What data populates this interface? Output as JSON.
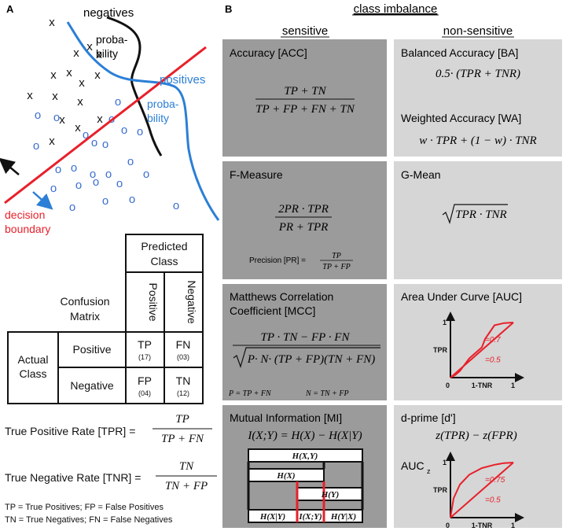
{
  "colors": {
    "boundary": "#e8202a",
    "positive_curve": "#2b7fd6",
    "negative_curve": "#111111",
    "positive_marker": "#3b6fd1",
    "negative_marker": "#111111",
    "sensitive_box": "#9b9b9b",
    "nonsensitive_box": "#d6d6d6",
    "auc_curve": "#e8202a"
  },
  "panel_a": {
    "letter": "A",
    "label_negatives": "negatives",
    "label_neg_prob_1": "proba-",
    "label_neg_prob_1b": "bility",
    "label_neg_prob_2": "proba-",
    "label_neg_prob_2b": "bility",
    "label_positives": "positives",
    "label_decision": "decision",
    "label_boundary": "boundary",
    "neg_marker": "x",
    "pos_marker": "o",
    "confusion": {
      "predicted_1": "Predicted",
      "predicted_2": "Class",
      "col_positive": "Positive",
      "col_negative": "Negative",
      "matrix_1": "Confusion",
      "matrix_2": "Matrix",
      "actual_1": "Actual",
      "actual_2": "Class",
      "row_positive": "Positive",
      "row_negative": "Negative",
      "tp": "TP",
      "tp_n": "(17)",
      "fn": "FN",
      "fn_n": "(03)",
      "fp": "FP",
      "fp_n": "(04)",
      "tn": "TN",
      "tn_n": "(12)"
    },
    "tpr_label": "True Positive Rate [TPR] =",
    "tpr_num": "TP",
    "tpr_den": "TP + FN",
    "tnr_label": "True Negative Rate [TNR] =",
    "tnr_num": "TN",
    "tnr_den": "TN + FP",
    "legend_1": "TP = True Positives; FP = False Positives",
    "legend_2": "TN = True Negatives; FN = False Negatives"
  },
  "panel_b": {
    "letter": "B",
    "title": "class imbalance",
    "col_sensitive": "sensitive",
    "col_nonsensitive": "non-sensitive",
    "acc_title": "Accuracy [ACC]",
    "acc_num": "TP + TN",
    "acc_den": "TP + FP + FN + TN",
    "ba_title": "Balanced Accuracy [BA]",
    "ba_formula": "0.5· (TPR + TNR)",
    "wa_title": "Weighted Accuracy [WA]",
    "wa_formula": "w · TPR + (1 − w) · TNR",
    "f_title": "F-Measure",
    "f_num": "2PR · TPR",
    "f_den": "PR + TPR",
    "pr_label": "Precision [PR] =",
    "pr_num": "TP",
    "pr_den": "TP + FP",
    "g_title": "G-Mean",
    "g_formula": "TPR · TNR",
    "mcc_title_1": "Matthews Correlation",
    "mcc_title_2": "Coefficient [MCC]",
    "mcc_num": "TP · TN − FP · FN",
    "mcc_den": "P· N· (TP + FP)(TN + FN)",
    "mcc_p": "P = TP + FN",
    "mcc_n": "N = TN + FP",
    "auc_title": "Area Under Curve [AUC]",
    "mi_title": "Mutual Information [MI]",
    "mi_formula": "I(X;Y) = H(X) − H(X|Y)",
    "mi_hxy": "H(X,Y)",
    "mi_hx": "H(X)",
    "mi_hy": "H(Y)",
    "mi_hxgy": "H(X|Y)",
    "mi_ixy": "I(X;Y)",
    "mi_hygx": "H(Y|X)",
    "dprime_title": "d-prime [d']",
    "dprime_formula": "z(TPR) − z(FPR)",
    "aucz_title": "AUC",
    "aucz_sub": "z"
  },
  "chart_data": [
    {
      "type": "line",
      "name": "auc",
      "xlabel": "1-TNR",
      "ylabel": "TPR",
      "tick_x_min": "0",
      "tick_x_max": "1",
      "tick_y_max": "1",
      "xlim": [
        0,
        1
      ],
      "ylim": [
        0,
        1
      ],
      "annotations": [
        "=0.7",
        "=0.5"
      ],
      "series": [
        {
          "values_x": [
            0,
            0.08,
            0.15,
            0.3,
            0.5,
            0.55,
            0.7,
            0.85,
            1
          ],
          "values_y": [
            0,
            0.05,
            0.12,
            0.35,
            0.55,
            0.7,
            0.95,
            0.99,
            1
          ]
        },
        {
          "values_x": [
            0,
            1
          ],
          "values_y": [
            0,
            1
          ]
        }
      ]
    },
    {
      "type": "line",
      "name": "aucz",
      "xlabel": "1-TNR",
      "ylabel": "TPR",
      "tick_x_min": "0",
      "tick_x_max": "1",
      "tick_y_max": "1",
      "xlim": [
        0,
        1
      ],
      "ylim": [
        0,
        1
      ],
      "annotations": [
        "=0.75",
        "=0.5"
      ],
      "series": [
        {
          "values_x": [
            0,
            0.05,
            0.15,
            0.3,
            0.5,
            0.7,
            0.85,
            1
          ],
          "values_y": [
            0,
            0.35,
            0.6,
            0.78,
            0.9,
            0.96,
            0.99,
            1
          ]
        },
        {
          "values_x": [
            0,
            1
          ],
          "values_y": [
            0,
            1
          ]
        }
      ]
    }
  ]
}
